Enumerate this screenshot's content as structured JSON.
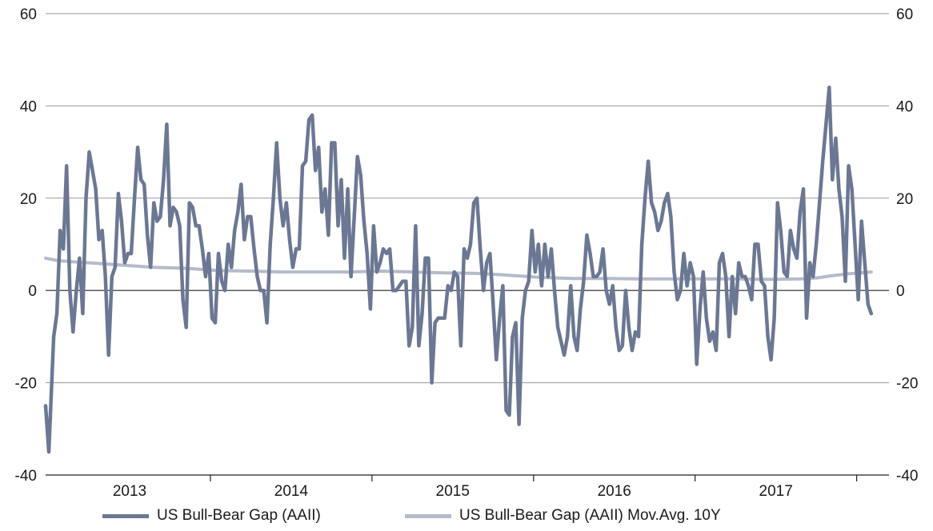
{
  "chart_data": {
    "type": "line",
    "ylim": [
      -40,
      60
    ],
    "yticks": [
      -40,
      -20,
      0,
      20,
      40,
      60
    ],
    "xlim": [
      2012.73,
      2017.95
    ],
    "x_tick_labels": [
      {
        "label": "2013",
        "center": 2013.25
      },
      {
        "label": "2014",
        "center": 2014.25
      },
      {
        "label": "2015",
        "center": 2015.25
      },
      {
        "label": "2016",
        "center": 2016.25
      },
      {
        "label": "2017",
        "center": 2017.25
      }
    ],
    "year_boundaries": [
      2013.75,
      2014.75,
      2015.75,
      2016.75,
      2017.75
    ],
    "grid": "horizontal",
    "legend_position": "bottom",
    "series": [
      {
        "name": "US Bull-Bear Gap (AAII)",
        "color": "#6b7793",
        "points": [
          [
            2012.73,
            -25
          ],
          [
            2012.75,
            -35
          ],
          [
            2012.78,
            -10
          ],
          [
            2012.8,
            -5
          ],
          [
            2012.82,
            13
          ],
          [
            2012.84,
            9
          ],
          [
            2012.86,
            27
          ],
          [
            2012.88,
            0
          ],
          [
            2012.9,
            -9
          ],
          [
            2012.92,
            0
          ],
          [
            2012.94,
            7
          ],
          [
            2012.96,
            -5
          ],
          [
            2012.98,
            20
          ],
          [
            2013.0,
            30
          ],
          [
            2013.02,
            26
          ],
          [
            2013.04,
            22
          ],
          [
            2013.06,
            11
          ],
          [
            2013.08,
            13
          ],
          [
            2013.1,
            3
          ],
          [
            2013.12,
            -14
          ],
          [
            2013.14,
            3
          ],
          [
            2013.16,
            5
          ],
          [
            2013.18,
            21
          ],
          [
            2013.2,
            15
          ],
          [
            2013.22,
            6
          ],
          [
            2013.24,
            8
          ],
          [
            2013.26,
            8
          ],
          [
            2013.28,
            20
          ],
          [
            2013.3,
            31
          ],
          [
            2013.32,
            24
          ],
          [
            2013.34,
            23
          ],
          [
            2013.36,
            12
          ],
          [
            2013.38,
            5
          ],
          [
            2013.4,
            19
          ],
          [
            2013.42,
            15
          ],
          [
            2013.44,
            16
          ],
          [
            2013.46,
            24
          ],
          [
            2013.48,
            36
          ],
          [
            2013.5,
            14
          ],
          [
            2013.52,
            18
          ],
          [
            2013.54,
            17
          ],
          [
            2013.56,
            14
          ],
          [
            2013.58,
            -2
          ],
          [
            2013.6,
            -8
          ],
          [
            2013.62,
            19
          ],
          [
            2013.64,
            18
          ],
          [
            2013.66,
            14
          ],
          [
            2013.68,
            14
          ],
          [
            2013.7,
            9
          ],
          [
            2013.72,
            3
          ],
          [
            2013.74,
            8
          ],
          [
            2013.76,
            -6
          ],
          [
            2013.78,
            -7
          ],
          [
            2013.8,
            8
          ],
          [
            2013.82,
            2
          ],
          [
            2013.84,
            0
          ],
          [
            2013.86,
            10
          ],
          [
            2013.88,
            5
          ],
          [
            2013.9,
            13
          ],
          [
            2013.92,
            17
          ],
          [
            2013.94,
            23
          ],
          [
            2013.96,
            11
          ],
          [
            2013.98,
            16
          ],
          [
            2014.0,
            16
          ],
          [
            2014.02,
            9
          ],
          [
            2014.04,
            3
          ],
          [
            2014.06,
            0
          ],
          [
            2014.08,
            0
          ],
          [
            2014.1,
            -7
          ],
          [
            2014.12,
            10
          ],
          [
            2014.14,
            20
          ],
          [
            2014.16,
            32
          ],
          [
            2014.18,
            20
          ],
          [
            2014.2,
            14
          ],
          [
            2014.22,
            19
          ],
          [
            2014.24,
            11
          ],
          [
            2014.26,
            5
          ],
          [
            2014.28,
            9
          ],
          [
            2014.3,
            9
          ],
          [
            2014.32,
            27
          ],
          [
            2014.34,
            28
          ],
          [
            2014.36,
            37
          ],
          [
            2014.38,
            38
          ],
          [
            2014.4,
            26
          ],
          [
            2014.42,
            31
          ],
          [
            2014.44,
            17
          ],
          [
            2014.46,
            22
          ],
          [
            2014.48,
            12
          ],
          [
            2014.5,
            32
          ],
          [
            2014.52,
            32
          ],
          [
            2014.54,
            14
          ],
          [
            2014.56,
            24
          ],
          [
            2014.58,
            7
          ],
          [
            2014.6,
            22
          ],
          [
            2014.62,
            3
          ],
          [
            2014.64,
            16
          ],
          [
            2014.66,
            29
          ],
          [
            2014.68,
            25
          ],
          [
            2014.7,
            15
          ],
          [
            2014.72,
            8
          ],
          [
            2014.74,
            -4
          ],
          [
            2014.76,
            14
          ],
          [
            2014.78,
            4
          ],
          [
            2014.8,
            6
          ],
          [
            2014.82,
            9
          ],
          [
            2014.84,
            8
          ],
          [
            2014.86,
            9
          ],
          [
            2014.88,
            0
          ],
          [
            2014.9,
            0
          ],
          [
            2014.92,
            1
          ],
          [
            2014.94,
            2
          ],
          [
            2014.96,
            2
          ],
          [
            2014.98,
            -12
          ],
          [
            2015.0,
            -8
          ],
          [
            2015.02,
            14
          ],
          [
            2015.04,
            -12
          ],
          [
            2015.06,
            -5
          ],
          [
            2015.08,
            7
          ],
          [
            2015.1,
            7
          ],
          [
            2015.12,
            -20
          ],
          [
            2015.14,
            -7
          ],
          [
            2015.16,
            -6
          ],
          [
            2015.18,
            -6
          ],
          [
            2015.2,
            -6
          ],
          [
            2015.22,
            1
          ],
          [
            2015.24,
            0
          ],
          [
            2015.26,
            4
          ],
          [
            2015.28,
            3
          ],
          [
            2015.3,
            -12
          ],
          [
            2015.32,
            9
          ],
          [
            2015.34,
            7
          ],
          [
            2015.36,
            10
          ],
          [
            2015.38,
            19
          ],
          [
            2015.4,
            20
          ],
          [
            2015.42,
            9
          ],
          [
            2015.44,
            0
          ],
          [
            2015.46,
            6
          ],
          [
            2015.48,
            8
          ],
          [
            2015.5,
            -3
          ],
          [
            2015.52,
            -15
          ],
          [
            2015.54,
            -6
          ],
          [
            2015.56,
            1
          ],
          [
            2015.58,
            -26
          ],
          [
            2015.6,
            -27
          ],
          [
            2015.62,
            -10
          ],
          [
            2015.64,
            -7
          ],
          [
            2015.66,
            -29
          ],
          [
            2015.68,
            -6
          ],
          [
            2015.7,
            0
          ],
          [
            2015.72,
            2
          ],
          [
            2015.74,
            13
          ],
          [
            2015.76,
            4
          ],
          [
            2015.78,
            10
          ],
          [
            2015.8,
            1
          ],
          [
            2015.82,
            10
          ],
          [
            2015.84,
            3
          ],
          [
            2015.86,
            9
          ],
          [
            2015.88,
            0
          ],
          [
            2015.9,
            -8
          ],
          [
            2015.92,
            -11
          ],
          [
            2015.94,
            -14
          ],
          [
            2015.96,
            -10
          ],
          [
            2015.98,
            1
          ],
          [
            2016.0,
            -10
          ],
          [
            2016.02,
            -13
          ],
          [
            2016.04,
            -4
          ],
          [
            2016.06,
            2
          ],
          [
            2016.08,
            12
          ],
          [
            2016.1,
            8
          ],
          [
            2016.12,
            3
          ],
          [
            2016.14,
            3
          ],
          [
            2016.16,
            4
          ],
          [
            2016.18,
            9
          ],
          [
            2016.2,
            0
          ],
          [
            2016.22,
            -3
          ],
          [
            2016.24,
            1
          ],
          [
            2016.26,
            -8
          ],
          [
            2016.28,
            -13
          ],
          [
            2016.3,
            -12
          ],
          [
            2016.32,
            0
          ],
          [
            2016.34,
            -8
          ],
          [
            2016.36,
            -13
          ],
          [
            2016.38,
            -9
          ],
          [
            2016.4,
            -10
          ],
          [
            2016.42,
            10
          ],
          [
            2016.44,
            20
          ],
          [
            2016.46,
            28
          ],
          [
            2016.48,
            19
          ],
          [
            2016.5,
            17
          ],
          [
            2016.52,
            13
          ],
          [
            2016.54,
            15
          ],
          [
            2016.56,
            19
          ],
          [
            2016.58,
            21
          ],
          [
            2016.6,
            16
          ],
          [
            2016.62,
            4
          ],
          [
            2016.64,
            -2
          ],
          [
            2016.66,
            0
          ],
          [
            2016.68,
            8
          ],
          [
            2016.7,
            1
          ],
          [
            2016.72,
            6
          ],
          [
            2016.74,
            3
          ],
          [
            2016.76,
            -16
          ],
          [
            2016.78,
            -4
          ],
          [
            2016.8,
            4
          ],
          [
            2016.82,
            -6
          ],
          [
            2016.84,
            -11
          ],
          [
            2016.86,
            -9
          ],
          [
            2016.88,
            -13
          ],
          [
            2016.9,
            6
          ],
          [
            2016.92,
            8
          ],
          [
            2016.94,
            3
          ],
          [
            2016.96,
            -10
          ],
          [
            2016.98,
            3
          ],
          [
            2017.0,
            -5
          ],
          [
            2017.02,
            6
          ],
          [
            2017.04,
            3
          ],
          [
            2017.06,
            3
          ],
          [
            2017.08,
            1
          ],
          [
            2017.1,
            -2
          ],
          [
            2017.12,
            10
          ],
          [
            2017.14,
            10
          ],
          [
            2017.16,
            2
          ],
          [
            2017.18,
            1
          ],
          [
            2017.2,
            -10
          ],
          [
            2017.22,
            -15
          ],
          [
            2017.24,
            -6
          ],
          [
            2017.26,
            19
          ],
          [
            2017.28,
            13
          ],
          [
            2017.3,
            4
          ],
          [
            2017.32,
            3
          ],
          [
            2017.34,
            13
          ],
          [
            2017.36,
            9
          ],
          [
            2017.38,
            7
          ],
          [
            2017.4,
            17
          ],
          [
            2017.42,
            22
          ],
          [
            2017.44,
            -6
          ],
          [
            2017.46,
            6
          ],
          [
            2017.48,
            3
          ],
          [
            2017.5,
            10
          ],
          [
            2017.52,
            19
          ],
          [
            2017.54,
            28
          ],
          [
            2017.56,
            36
          ],
          [
            2017.58,
            44
          ],
          [
            2017.6,
            24
          ],
          [
            2017.62,
            33
          ],
          [
            2017.64,
            22
          ],
          [
            2017.66,
            16
          ],
          [
            2017.68,
            2
          ],
          [
            2017.7,
            27
          ],
          [
            2017.72,
            22
          ],
          [
            2017.74,
            10
          ],
          [
            2017.76,
            -2
          ],
          [
            2017.78,
            15
          ],
          [
            2017.8,
            6
          ],
          [
            2017.82,
            -3
          ],
          [
            2017.84,
            -5
          ]
        ]
      },
      {
        "name": "US Bull-Bear Gap (AAII) Mov.Avg. 10Y",
        "color": "#b4bbca",
        "points": [
          [
            2012.73,
            7
          ],
          [
            2012.8,
            6.5
          ],
          [
            2012.9,
            6.2
          ],
          [
            2013.0,
            6
          ],
          [
            2013.2,
            5.5
          ],
          [
            2013.4,
            5
          ],
          [
            2013.6,
            4.8
          ],
          [
            2013.8,
            4.3
          ],
          [
            2014.0,
            4.2
          ],
          [
            2014.2,
            4
          ],
          [
            2014.4,
            4
          ],
          [
            2014.6,
            4
          ],
          [
            2014.8,
            4.2
          ],
          [
            2015.0,
            4
          ],
          [
            2015.2,
            3.8
          ],
          [
            2015.4,
            3.7
          ],
          [
            2015.6,
            3.3
          ],
          [
            2015.8,
            2.8
          ],
          [
            2016.0,
            2.6
          ],
          [
            2016.2,
            2.6
          ],
          [
            2016.4,
            2.5
          ],
          [
            2016.6,
            2.5
          ],
          [
            2016.8,
            2.5
          ],
          [
            2017.0,
            2.5
          ],
          [
            2017.2,
            2.4
          ],
          [
            2017.4,
            2.5
          ],
          [
            2017.5,
            2.7
          ],
          [
            2017.6,
            3.2
          ],
          [
            2017.7,
            3.6
          ],
          [
            2017.8,
            3.9
          ],
          [
            2017.84,
            4
          ]
        ]
      }
    ]
  }
}
